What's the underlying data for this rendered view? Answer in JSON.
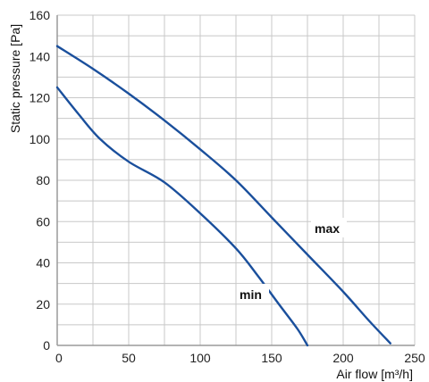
{
  "chart_data": {
    "type": "line",
    "xlabel": "Air flow [m³/h]",
    "ylabel": "Static pressure [Pa]",
    "xlim": [
      0,
      250
    ],
    "ylim": [
      0,
      160
    ],
    "x_ticks": [
      "0",
      "50",
      "100",
      "150",
      "200",
      "250"
    ],
    "y_ticks": [
      "0",
      "20",
      "40",
      "60",
      "80",
      "100",
      "120",
      "140",
      "160"
    ],
    "grid": true,
    "colors": {
      "curve": "#1a4f9c",
      "grid": "#c8c8c8",
      "axis": "#9a9a9a"
    },
    "series": [
      {
        "name": "max",
        "points": [
          [
            0,
            145
          ],
          [
            25,
            134
          ],
          [
            50,
            122
          ],
          [
            75,
            109
          ],
          [
            100,
            95
          ],
          [
            125,
            80
          ],
          [
            150,
            62
          ],
          [
            175,
            44
          ],
          [
            200,
            26
          ],
          [
            218,
            12
          ],
          [
            233,
            1
          ]
        ]
      },
      {
        "name": "min",
        "points": [
          [
            0,
            125
          ],
          [
            15,
            112
          ],
          [
            30,
            100
          ],
          [
            50,
            89
          ],
          [
            75,
            79
          ],
          [
            100,
            64
          ],
          [
            125,
            47
          ],
          [
            140,
            34
          ],
          [
            155,
            20
          ],
          [
            168,
            8
          ],
          [
            175,
            0
          ]
        ]
      }
    ]
  }
}
